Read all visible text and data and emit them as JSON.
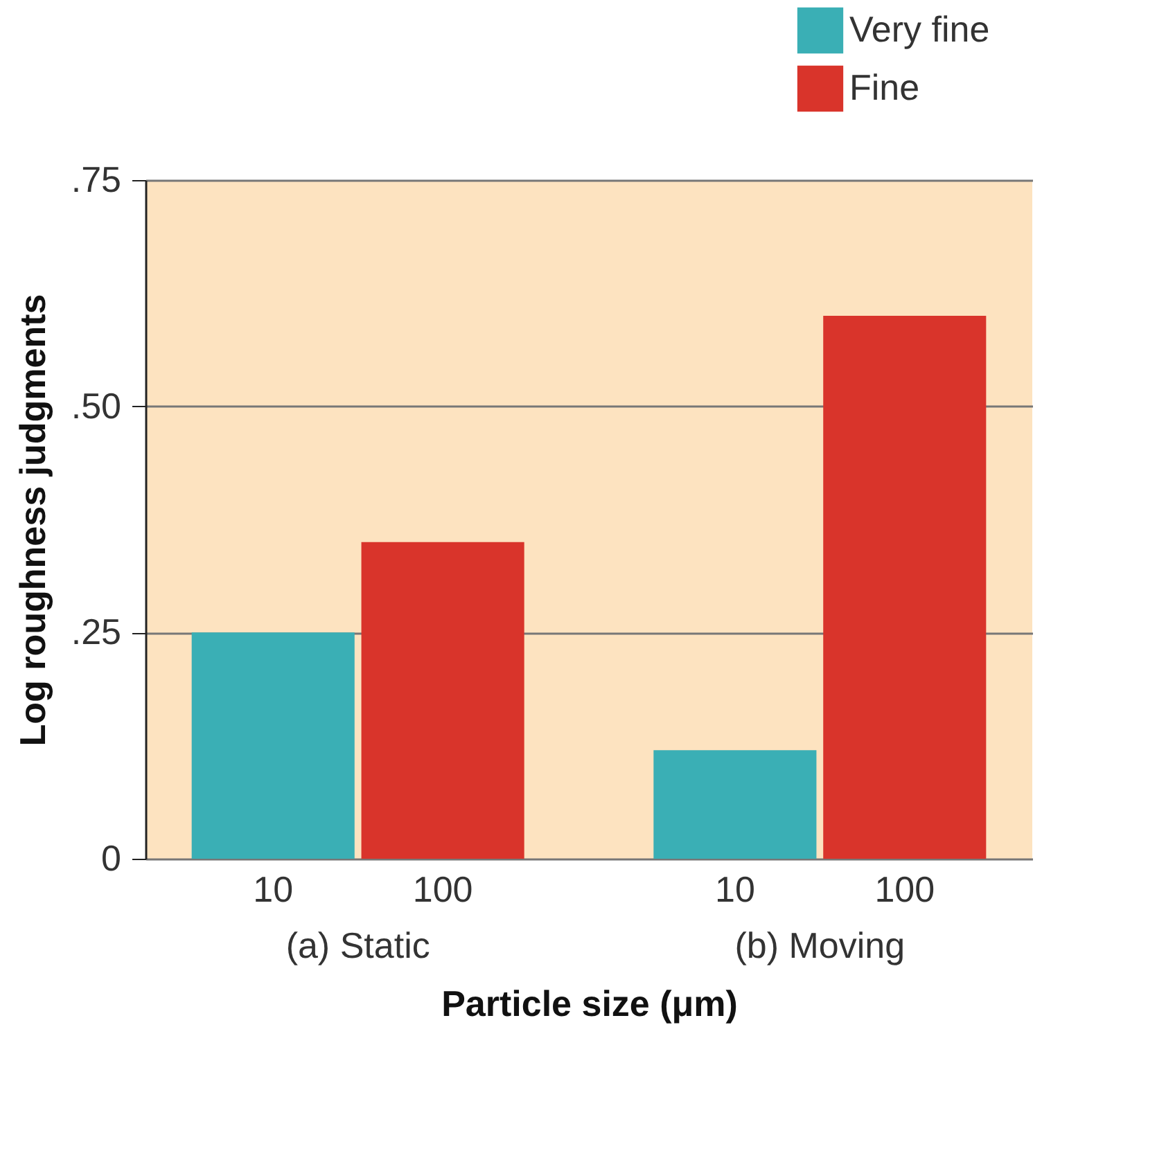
{
  "chart_data": {
    "type": "bar",
    "xlabel": "Particle size (μm)",
    "ylabel": "Log roughness judgments",
    "categories": [
      "(a) Static",
      "(b) Moving"
    ],
    "series": [
      {
        "name": "Very fine",
        "color": "#3aafb5",
        "values": [
          0.25,
          0.12
        ]
      },
      {
        "name": "Fine",
        "color": "#d9342b",
        "values": [
          0.35,
          0.6
        ]
      }
    ],
    "annotations": [
      "10",
      "100",
      "10",
      "100"
    ],
    "ylim": [
      0,
      0.75
    ],
    "yticks": [
      0,
      {
        "value": 0.25,
        "label": ".25"
      },
      {
        "value": 0.5,
        "label": ".50"
      },
      {
        "value": 0.75,
        "label": ".75"
      }
    ],
    "grid": "y",
    "legend": "top right"
  }
}
